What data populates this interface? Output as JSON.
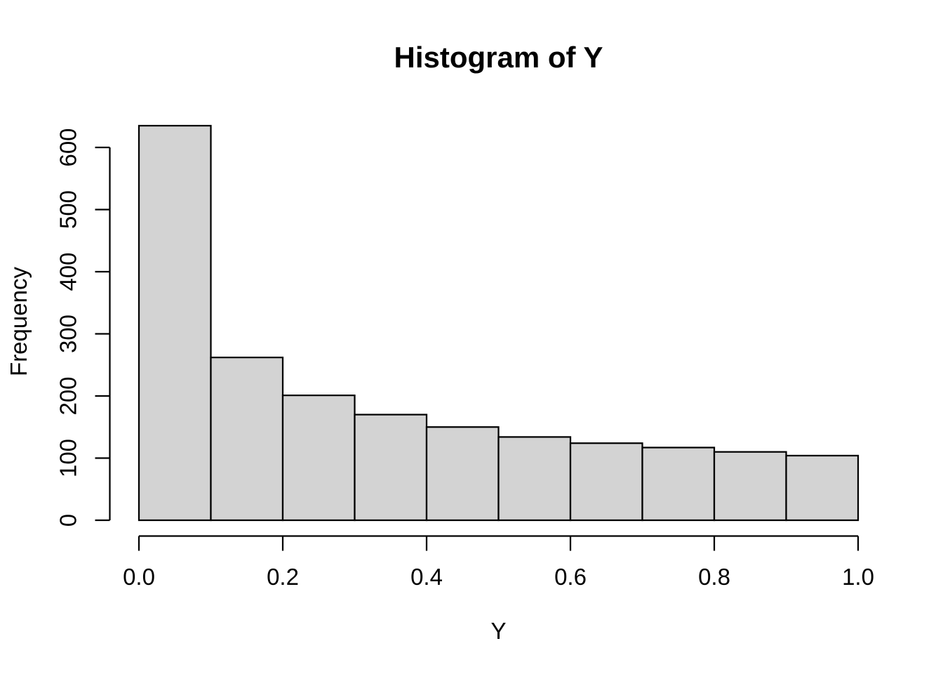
{
  "chart_data": {
    "type": "bar",
    "subtype": "histogram",
    "title": "Histogram of Y",
    "xlabel": "Y",
    "ylabel": "Frequency",
    "bin_start": 0.0,
    "bin_width": 0.1,
    "bin_edges": [
      0.0,
      0.1,
      0.2,
      0.3,
      0.4,
      0.5,
      0.6,
      0.7,
      0.8,
      0.9,
      1.0
    ],
    "values": [
      635,
      262,
      201,
      170,
      150,
      134,
      124,
      117,
      110,
      104
    ],
    "xlim": [
      0.0,
      1.0
    ],
    "ylim": [
      0,
      640
    ],
    "x_ticks": {
      "values": [
        0.0,
        0.2,
        0.4,
        0.6,
        0.8,
        1.0
      ],
      "labels": [
        "0.0",
        "0.2",
        "0.4",
        "0.6",
        "0.8",
        "1.0"
      ]
    },
    "y_ticks": {
      "values": [
        0,
        100,
        200,
        300,
        400,
        500,
        600
      ],
      "labels": [
        "0",
        "100",
        "200",
        "300",
        "400",
        "500",
        "600"
      ]
    },
    "grid": false,
    "legend": null,
    "colors": {
      "bar_fill": "#d3d3d3",
      "bar_stroke": "#000000",
      "axis": "#000000",
      "text": "#000000",
      "background": "#ffffff"
    }
  }
}
